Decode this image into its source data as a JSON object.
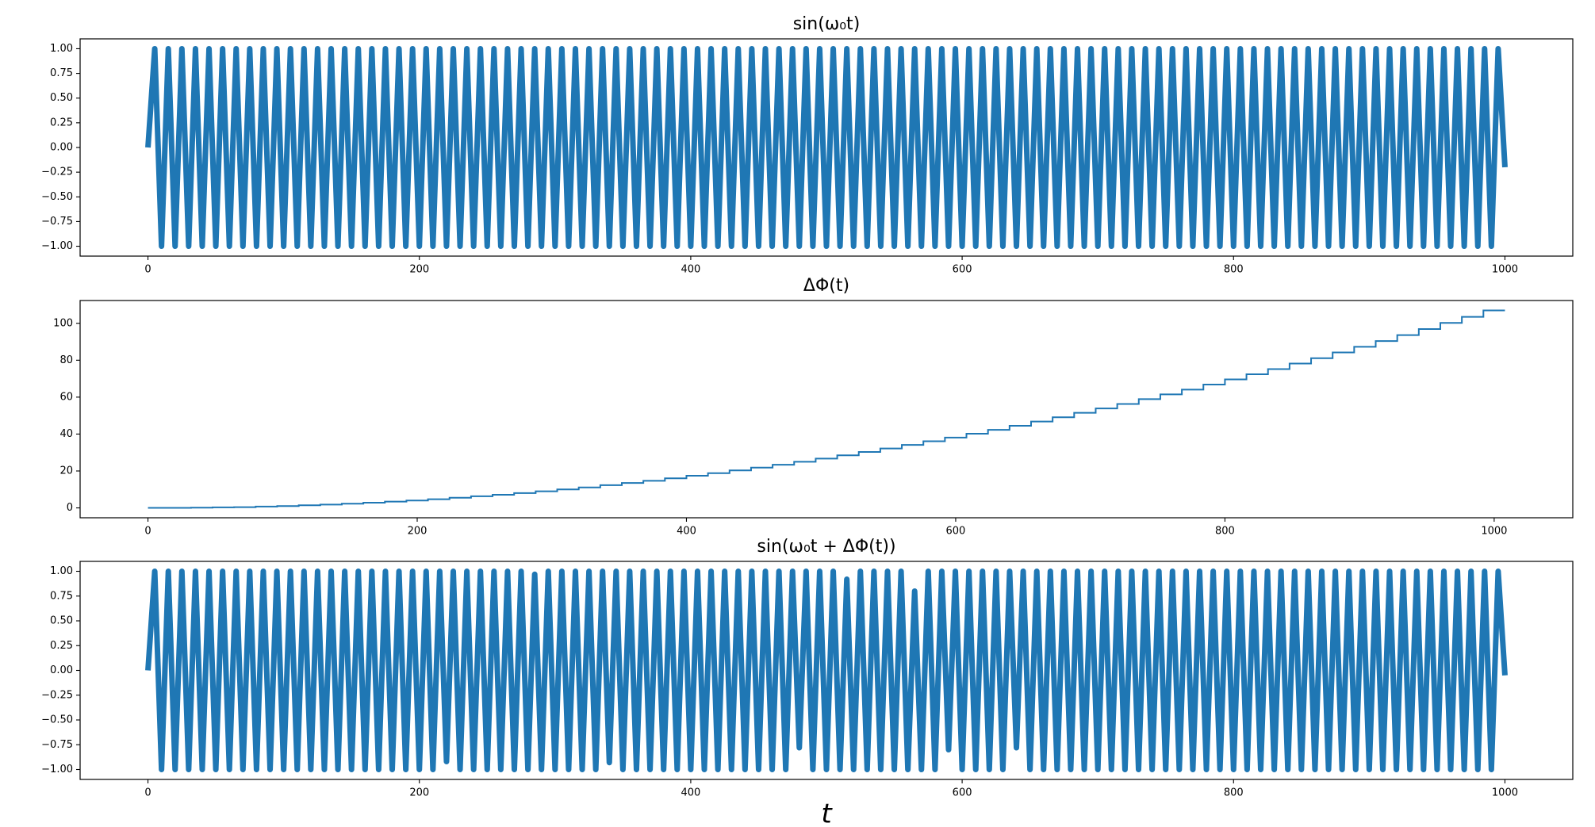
{
  "chart_data": [
    {
      "type": "line",
      "title": "sin(ω₀t)",
      "color": "#1f77b4",
      "x": [
        0,
        5,
        10,
        15,
        20,
        25,
        30,
        35,
        40,
        45,
        50,
        55,
        60,
        65,
        70,
        75,
        80,
        85,
        90,
        95,
        100,
        105,
        110,
        115,
        120,
        125,
        130,
        135,
        140,
        145,
        150,
        155,
        160,
        165,
        170,
        175,
        180,
        185,
        190,
        195,
        200,
        205,
        210,
        215,
        220,
        225,
        230,
        235,
        240,
        245,
        250,
        255,
        260,
        265,
        270,
        275,
        280,
        285,
        290,
        295,
        300,
        305,
        310,
        315,
        320,
        325,
        330,
        335,
        340,
        345,
        350,
        355,
        360,
        365,
        370,
        375,
        380,
        385,
        390,
        395,
        400,
        405,
        410,
        415,
        420,
        425,
        430,
        435,
        440,
        445,
        450,
        455,
        460,
        465,
        470,
        475,
        480,
        485,
        490,
        495,
        500,
        505,
        510,
        515,
        520,
        525,
        530,
        535,
        540,
        545,
        550,
        555,
        560,
        565,
        570,
        575,
        580,
        585,
        590,
        595,
        600,
        605,
        610,
        615,
        620,
        625,
        630,
        635,
        640,
        645,
        650,
        655,
        660,
        665,
        670,
        675,
        680,
        685,
        690,
        695,
        700,
        705,
        710,
        715,
        720,
        725,
        730,
        735,
        740,
        745,
        750,
        755,
        760,
        765,
        770,
        775,
        780,
        785,
        790,
        795,
        800,
        805,
        810,
        815,
        820,
        825,
        830,
        835,
        840,
        845,
        850,
        855,
        860,
        865,
        870,
        875,
        880,
        885,
        890,
        895,
        900,
        905,
        910,
        915,
        920,
        925,
        930,
        935,
        940,
        945,
        950,
        955,
        960,
        965,
        970,
        975,
        980,
        985,
        990,
        995,
        1000
      ],
      "values": [
        0,
        1,
        -1,
        1,
        -1,
        1,
        -1,
        1,
        -1,
        1,
        -1,
        1,
        -1,
        1,
        -1,
        1,
        -1,
        1,
        -1,
        1,
        -1,
        1,
        -1,
        1,
        -1,
        1,
        -1,
        1,
        -1,
        1,
        -1,
        1,
        -1,
        1,
        -1,
        1,
        -1,
        1,
        -1,
        1,
        -1,
        1,
        -1,
        1,
        -1,
        1,
        -1,
        1,
        -1,
        1,
        -1,
        1,
        -1,
        1,
        -1,
        1,
        -1,
        1,
        -1,
        1,
        -1,
        1,
        -1,
        1,
        -1,
        1,
        -1,
        1,
        -1,
        1,
        -1,
        1,
        -1,
        1,
        -1,
        1,
        -1,
        1,
        -1,
        1,
        -1,
        1,
        -1,
        1,
        -1,
        1,
        -1,
        1,
        -1,
        1,
        -1,
        1,
        -1,
        1,
        -1,
        1,
        -1,
        1,
        -1,
        1,
        -1,
        1,
        -1,
        1,
        -1,
        1,
        -1,
        1,
        -1,
        1,
        -1,
        1,
        -1,
        1,
        -1,
        1,
        -1,
        1,
        -1,
        1,
        -1,
        1,
        -1,
        1,
        -1,
        1,
        -1,
        1,
        -1,
        1,
        -1,
        1,
        -1,
        1,
        -1,
        1,
        -1,
        1,
        -1,
        1,
        -1,
        1,
        -1,
        1,
        -1,
        1,
        -1,
        1,
        -1,
        1,
        -1,
        1,
        -1,
        1,
        -1,
        1,
        -1,
        1,
        -1,
        1,
        -1,
        1,
        -1,
        1,
        -1,
        1,
        -1,
        1,
        -1,
        1,
        -1,
        1,
        -1,
        1,
        -1,
        1,
        -1,
        1,
        -1,
        1,
        -1,
        1,
        -1,
        1,
        -1,
        1,
        -1,
        1,
        -1,
        1,
        -1,
        1,
        -1,
        1,
        -1,
        1,
        -1,
        1,
        -1,
        1,
        -0.2
      ],
      "xlim": [
        -50,
        1050
      ],
      "xticks": [
        0,
        200,
        400,
        600,
        800,
        1000
      ],
      "ylim": [
        -1.1,
        1.1
      ],
      "yticks": [
        {
          "value": -1,
          "label": "−1.00"
        },
        {
          "value": -0.75,
          "label": "−0.75"
        },
        {
          "value": -0.5,
          "label": "−0.50"
        },
        {
          "value": -0.25,
          "label": "−0.25"
        },
        {
          "value": 0,
          "label": "0.00"
        },
        {
          "value": 0.25,
          "label": "0.25"
        },
        {
          "value": 0.5,
          "label": "0.50"
        },
        {
          "value": 0.75,
          "label": "0.75"
        },
        {
          "value": 1,
          "label": "1.00"
        }
      ]
    },
    {
      "type": "step",
      "title": "ΔΦ(t)",
      "color": "#1f77b4",
      "x": [
        0,
        16,
        32,
        48,
        64,
        80,
        96,
        112,
        128,
        144,
        160,
        176,
        192,
        208,
        224,
        240,
        256,
        272,
        288,
        304,
        320,
        336,
        352,
        368,
        384,
        400,
        416,
        432,
        448,
        464,
        480,
        496,
        512,
        528,
        544,
        560,
        576,
        592,
        608,
        624,
        640,
        656,
        672,
        688,
        704,
        720,
        736,
        752,
        768,
        784,
        800,
        816,
        832,
        848,
        864,
        880,
        896,
        912,
        928,
        944,
        960,
        976,
        992,
        1008
      ],
      "values": [
        0,
        0,
        0.1,
        0.3,
        0.4,
        0.7,
        1,
        1.4,
        1.8,
        2.3,
        2.8,
        3.4,
        4,
        4.7,
        5.5,
        6.3,
        7.1,
        8,
        9,
        10,
        11.1,
        12.3,
        13.5,
        14.7,
        16,
        17.4,
        18.8,
        20.3,
        21.8,
        23.4,
        25,
        26.7,
        28.5,
        30.3,
        32.2,
        34.1,
        36.1,
        38.1,
        40.2,
        42.3,
        44.5,
        46.8,
        49.1,
        51.5,
        53.9,
        56.3,
        58.9,
        61.5,
        64.1,
        66.8,
        69.6,
        72.4,
        75.2,
        78.2,
        81.1,
        84.2,
        87.3,
        90.4,
        93.6,
        96.9,
        100.2,
        103.5,
        107,
        107
      ],
      "xlim": [
        -50.4,
        1058.4
      ],
      "xticks": [
        0,
        200,
        400,
        600,
        800,
        1000
      ],
      "ylim": [
        -5.35,
        112.35
      ],
      "yticks": [
        0,
        20,
        40,
        60,
        80,
        100
      ]
    },
    {
      "type": "line",
      "title": "sin(ω₀t + ΔΦ(t))",
      "xlabel": "t",
      "color": "#1f77b4",
      "x": [
        0,
        5,
        10,
        15,
        20,
        25,
        30,
        35,
        40,
        45,
        50,
        55,
        60,
        65,
        70,
        75,
        80,
        85,
        90,
        95,
        100,
        105,
        110,
        115,
        120,
        125,
        130,
        135,
        140,
        145,
        150,
        155,
        160,
        165,
        170,
        175,
        180,
        185,
        190,
        195,
        200,
        205,
        210,
        215,
        220,
        225,
        230,
        235,
        240,
        245,
        250,
        255,
        260,
        265,
        270,
        275,
        280,
        285,
        290,
        295,
        300,
        305,
        310,
        315,
        320,
        325,
        330,
        335,
        340,
        345,
        350,
        355,
        360,
        365,
        370,
        375,
        380,
        385,
        390,
        395,
        400,
        405,
        410,
        415,
        420,
        425,
        430,
        435,
        440,
        445,
        450,
        455,
        460,
        465,
        470,
        475,
        480,
        485,
        490,
        495,
        500,
        505,
        510,
        515,
        520,
        525,
        530,
        535,
        540,
        545,
        550,
        555,
        560,
        565,
        570,
        575,
        580,
        585,
        590,
        595,
        600,
        605,
        610,
        615,
        620,
        625,
        630,
        635,
        640,
        645,
        650,
        655,
        660,
        665,
        670,
        675,
        680,
        685,
        690,
        695,
        700,
        705,
        710,
        715,
        720,
        725,
        730,
        735,
        740,
        745,
        750,
        755,
        760,
        765,
        770,
        775,
        780,
        785,
        790,
        795,
        800,
        805,
        810,
        815,
        820,
        825,
        830,
        835,
        840,
        845,
        850,
        855,
        860,
        865,
        870,
        875,
        880,
        885,
        890,
        895,
        900,
        905,
        910,
        915,
        920,
        925,
        930,
        935,
        940,
        945,
        950,
        955,
        960,
        965,
        970,
        975,
        980,
        985,
        990,
        995,
        1000
      ],
      "values": [
        0,
        1,
        -1,
        1,
        -1,
        1,
        -1,
        1,
        -1,
        1,
        -1,
        1,
        -1,
        1,
        -1,
        1,
        -1,
        1,
        -1,
        1,
        -1,
        1,
        -1,
        1,
        -1,
        1,
        -1,
        1,
        -1,
        1,
        -1,
        1,
        -1,
        1,
        -1,
        1,
        -1,
        1,
        -1,
        1,
        -1,
        1,
        -1,
        1,
        -0.92,
        1,
        -1,
        1,
        -1,
        1,
        -1,
        1,
        -1,
        1,
        -1,
        1,
        -1,
        0.97,
        -1,
        1,
        -1,
        1,
        -1,
        1,
        -1,
        1,
        -1,
        1,
        -0.93,
        1,
        -1,
        1,
        -1,
        1,
        -1,
        1,
        -1,
        1,
        -1,
        1,
        -1,
        1,
        -1,
        1,
        -1,
        1,
        -1,
        1,
        -1,
        1,
        -1,
        1,
        -1,
        1,
        -1,
        1,
        -0.78,
        1,
        -1,
        1,
        -1,
        1,
        -1,
        0.92,
        -1,
        1,
        -1,
        1,
        -1,
        1,
        -1,
        1,
        -1,
        0.8,
        -1,
        1,
        -1,
        1,
        -0.8,
        1,
        -1,
        1,
        -1,
        1,
        -1,
        1,
        -1,
        1,
        -0.78,
        1,
        -1,
        1,
        -1,
        1,
        -1,
        1,
        -1,
        1,
        -1,
        1,
        -1,
        1,
        -1,
        1,
        -1,
        1,
        -1,
        1,
        -1,
        1,
        -1,
        1,
        -1,
        1,
        -1,
        1,
        -1,
        1,
        -1,
        1,
        -1,
        1,
        -1,
        1,
        -1,
        1,
        -1,
        1,
        -1,
        1,
        -1,
        1,
        -1,
        1,
        -1,
        1,
        -1,
        1,
        -1,
        1,
        -1,
        1,
        -1,
        1,
        -1,
        1,
        -1,
        1,
        -1,
        1,
        -1,
        1,
        -1,
        1,
        -1,
        1,
        -1,
        1,
        -1,
        1,
        -0.05
      ],
      "xlim": [
        -50,
        1050
      ],
      "xticks": [
        0,
        200,
        400,
        600,
        800,
        1000
      ],
      "ylim": [
        -1.1,
        1.1
      ],
      "yticks": [
        {
          "value": -1,
          "label": "−1.00"
        },
        {
          "value": -0.75,
          "label": "−0.75"
        },
        {
          "value": -0.5,
          "label": "−0.50"
        },
        {
          "value": -0.25,
          "label": "−0.25"
        },
        {
          "value": 0,
          "label": "0.00"
        },
        {
          "value": 0.25,
          "label": "0.25"
        },
        {
          "value": 0.5,
          "label": "0.50"
        },
        {
          "value": 0.75,
          "label": "0.75"
        },
        {
          "value": 1,
          "label": "1.00"
        }
      ]
    }
  ]
}
